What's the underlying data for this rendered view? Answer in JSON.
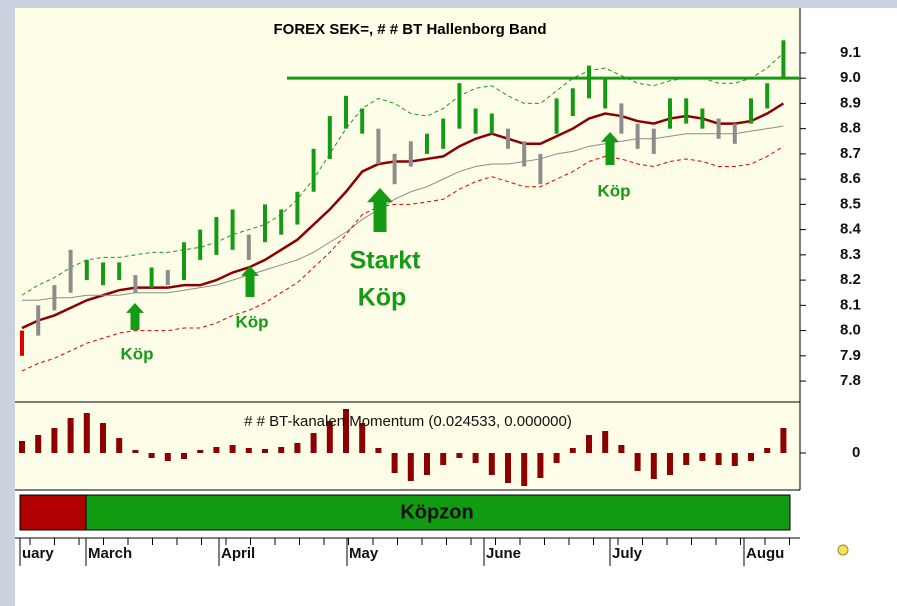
{
  "chart_data": {
    "type": "price-bars",
    "title": "FOREX SEK=, # # BT Hallenborg Band",
    "ylim": [
      7.725,
      9.278
    ],
    "yticks": [
      9.1,
      {
        "value": 9,
        "label": "9.0"
      },
      8.9,
      8.8,
      8.7,
      8.6,
      8.5,
      8.4,
      8.3,
      8.2,
      8.1,
      {
        "value": 8,
        "label": "8.0"
      },
      7.9,
      7.8
    ],
    "low": [
      7.9,
      7.98,
      8.08,
      8.15,
      8.2,
      8.18,
      8.2,
      8.15,
      8.17,
      8.18,
      8.2,
      8.28,
      8.3,
      8.32,
      8.28,
      8.35,
      8.38,
      8.42,
      8.55,
      8.68,
      8.8,
      8.78,
      8.66,
      8.58,
      8.65,
      8.7,
      8.72,
      8.8,
      8.78,
      8.78,
      8.72,
      8.65,
      8.58,
      8.78,
      8.85,
      8.92,
      8.88,
      8.78,
      8.72,
      8.7,
      8.8,
      8.82,
      8.8,
      8.76,
      8.74,
      8.82,
      8.88,
      9.0
    ],
    "high": [
      8.0,
      8.1,
      8.18,
      8.32,
      8.28,
      8.27,
      8.27,
      8.22,
      8.25,
      8.24,
      8.35,
      8.4,
      8.45,
      8.48,
      8.38,
      8.5,
      8.48,
      8.55,
      8.72,
      8.85,
      8.93,
      8.88,
      8.8,
      8.7,
      8.75,
      8.78,
      8.84,
      8.98,
      8.88,
      8.86,
      8.8,
      8.75,
      8.7,
      8.92,
      8.96,
      9.05,
      9.0,
      8.9,
      8.82,
      8.8,
      8.92,
      8.92,
      8.88,
      8.84,
      8.82,
      8.92,
      8.98,
      9.15
    ],
    "bar_colors": [
      "#e00000",
      "#8c8c8c",
      "#8c8c8c",
      "#8c8c8c",
      "#159a15",
      "#159a15",
      "#159a15",
      "#8c8c8c",
      "#159a15",
      "#8c8c8c",
      "#159a15",
      "#159a15",
      "#159a15",
      "#159a15",
      "#8c8c8c",
      "#159a15",
      "#159a15",
      "#159a15",
      "#159a15",
      "#159a15",
      "#159a15",
      "#159a15",
      "#8c8c8c",
      "#8c8c8c",
      "#8c8c8c",
      "#159a15",
      "#159a15",
      "#159a15",
      "#159a15",
      "#159a15",
      "#8c8c8c",
      "#8c8c8c",
      "#8c8c8c",
      "#159a15",
      "#159a15",
      "#159a15",
      "#159a15",
      "#8c8c8c",
      "#8c8c8c",
      "#8c8c8c",
      "#159a15",
      "#159a15",
      "#159a15",
      "#8c8c8c",
      "#8c8c8c",
      "#159a15",
      "#159a15",
      "#159a15"
    ],
    "lines": [
      {
        "color": "#8b0000",
        "dash": false,
        "width": 2.5,
        "values": [
          8.01,
          8.04,
          8.06,
          8.09,
          8.12,
          8.14,
          8.16,
          8.17,
          8.17,
          8.17,
          8.18,
          8.18,
          8.2,
          8.23,
          8.25,
          8.28,
          8.32,
          8.36,
          8.42,
          8.48,
          8.55,
          8.63,
          8.66,
          8.67,
          8.67,
          8.68,
          8.69,
          8.73,
          8.76,
          8.78,
          8.76,
          8.74,
          8.74,
          8.77,
          8.8,
          8.84,
          8.86,
          8.85,
          8.83,
          8.82,
          8.84,
          8.85,
          8.84,
          8.82,
          8.82,
          8.83,
          8.86,
          8.9
        ]
      },
      {
        "color": "#8c8c8c",
        "dash": false,
        "width": 1,
        "values": [
          8.12,
          8.12,
          8.13,
          8.13,
          8.14,
          8.14,
          8.14,
          8.15,
          8.15,
          8.15,
          8.16,
          8.17,
          8.18,
          8.2,
          8.22,
          8.24,
          8.26,
          8.28,
          8.31,
          8.35,
          8.39,
          8.44,
          8.48,
          8.52,
          8.55,
          8.57,
          8.6,
          8.63,
          8.65,
          8.66,
          8.66,
          8.67,
          8.68,
          8.7,
          8.71,
          8.73,
          8.74,
          8.75,
          8.76,
          8.76,
          8.77,
          8.78,
          8.78,
          8.78,
          8.78,
          8.79,
          8.8,
          8.81
        ]
      },
      {
        "color": "#159a15",
        "dash": true,
        "width": 1,
        "values": [
          8.14,
          8.18,
          8.21,
          8.25,
          8.28,
          8.29,
          8.29,
          8.3,
          8.31,
          8.31,
          8.32,
          8.33,
          8.35,
          8.38,
          8.4,
          8.42,
          8.46,
          8.52,
          8.6,
          8.7,
          8.8,
          8.88,
          8.92,
          8.9,
          8.86,
          8.85,
          8.88,
          8.93,
          8.96,
          8.97,
          8.93,
          8.9,
          8.9,
          8.95,
          9.0,
          9.03,
          9.04,
          9.01,
          8.98,
          8.97,
          8.99,
          9.0,
          9.0,
          8.98,
          8.98,
          9.0,
          9.04,
          9.1
        ]
      },
      {
        "color": "#e00000",
        "dash": true,
        "width": 1,
        "values": [
          7.84,
          7.87,
          7.89,
          7.92,
          7.95,
          7.97,
          7.99,
          8.0,
          8.0,
          8.0,
          8.01,
          8.01,
          8.03,
          8.06,
          8.08,
          8.11,
          8.15,
          8.19,
          8.25,
          8.31,
          8.38,
          8.46,
          8.49,
          8.5,
          8.5,
          8.51,
          8.52,
          8.56,
          8.59,
          8.61,
          8.59,
          8.57,
          8.57,
          8.6,
          8.63,
          8.67,
          8.69,
          8.68,
          8.66,
          8.65,
          8.67,
          8.68,
          8.67,
          8.65,
          8.65,
          8.66,
          8.69,
          8.73
        ]
      }
    ],
    "resistance": 9.0,
    "resistance_color": "#159a15",
    "annotations": [
      "Köp",
      "Köp",
      "Starkt",
      "Köp",
      "Köp"
    ],
    "annotation_color": "#159a15",
    "momentum_title": "# # BT-kanalen Momentum (0.024533, 0.000000)",
    "momentum_ylim": [
      -0.035,
      0.049
    ],
    "momentum_yticks": [
      0
    ],
    "momentum_color": "#8b0000",
    "momentum": [
      0.012,
      0.018,
      0.025,
      0.035,
      0.04,
      0.03,
      0.015,
      0.003,
      -0.005,
      -0.008,
      -0.006,
      0.003,
      0.006,
      0.008,
      0.005,
      0.004,
      0.006,
      0.01,
      0.02,
      0.032,
      0.044,
      0.03,
      0.005,
      -0.02,
      -0.028,
      -0.022,
      -0.012,
      -0.005,
      -0.01,
      -0.022,
      -0.03,
      -0.033,
      -0.025,
      -0.01,
      0.005,
      0.018,
      0.022,
      0.008,
      -0.018,
      -0.026,
      -0.022,
      -0.012,
      -0.008,
      -0.012,
      -0.013,
      -0.008,
      0.005,
      0.025
    ],
    "zone_colors": [
      "#b00000",
      "#119b11"
    ],
    "zone_label": "Köpzon",
    "months": [
      "uary",
      "March",
      "April",
      "May",
      "June",
      "July",
      "Augu"
    ]
  }
}
